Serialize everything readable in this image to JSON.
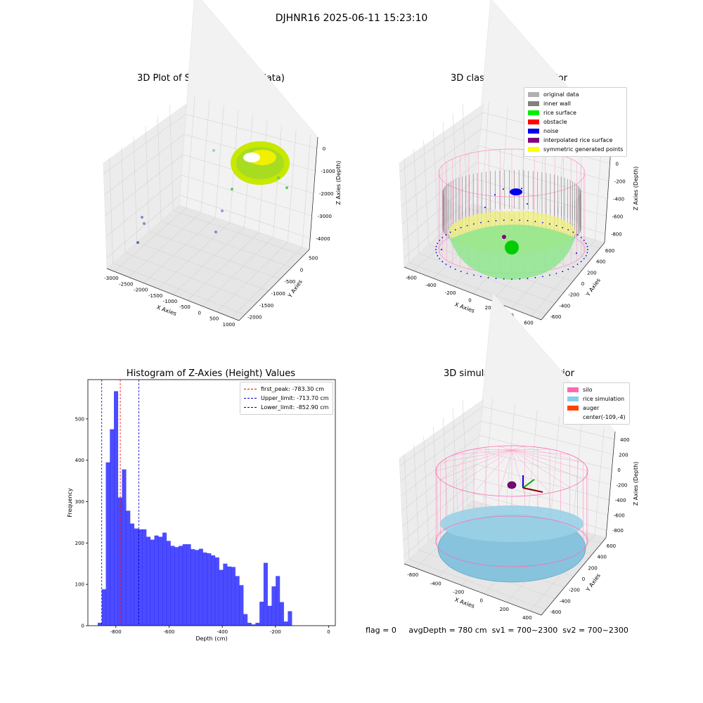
{
  "figure": {
    "suptitle": "DJHNR16 2025-06-11 15:23:10"
  },
  "panels": {
    "raw": {
      "title": "3D Plot of Silo Interior(row data)",
      "xlabel": "X Axies",
      "ylabel": "Y Axies",
      "zlabel": "Z Axies (Depth)",
      "x_ticks": [
        "-3000",
        "-2500",
        "-2000",
        "-1500",
        "-1000",
        "-500",
        "0",
        "500",
        "1000"
      ],
      "y_ticks": [
        "500",
        "0",
        "-500",
        "-1000",
        "-1500",
        "-2000"
      ],
      "z_ticks": [
        "0",
        "-1000",
        "-2000",
        "-3000",
        "-4000"
      ]
    },
    "classify": {
      "title": "3D classify of Silo Interior",
      "xlabel": "X Axies",
      "ylabel": "Y Axies",
      "zlabel": "Z Axies (Depth)",
      "x_ticks": [
        "-600",
        "-400",
        "-200",
        "0",
        "200",
        "400",
        "600"
      ],
      "y_ticks": [
        "600",
        "400",
        "200",
        "0",
        "-200",
        "-400",
        "-600"
      ],
      "z_ticks": [
        "200",
        "0",
        "-200",
        "-400",
        "-600",
        "-800"
      ],
      "legend": [
        {
          "label": "original data",
          "color": "#b0b0b0"
        },
        {
          "label": "inner wall",
          "color": "#808080"
        },
        {
          "label": "rice surface",
          "color": "#00ee00"
        },
        {
          "label": "obstacle",
          "color": "#ff0000"
        },
        {
          "label": "noise",
          "color": "#0000ee"
        },
        {
          "label": "interpolated rice surface",
          "color": "#800080"
        },
        {
          "label": "symmetric generated points",
          "color": "#ffff00"
        }
      ]
    },
    "simulation": {
      "title": "3D simulation of Silo Interior",
      "xlabel": "X Axies",
      "ylabel": "Y Axies",
      "zlabel": "Z Axies (Depth)",
      "x_ticks": [
        "-600",
        "-400",
        "-200",
        "0",
        "200",
        "400"
      ],
      "y_ticks": [
        "600",
        "400",
        "200",
        "0",
        "-200",
        "-400",
        "-600"
      ],
      "z_ticks": [
        "400",
        "200",
        "0",
        "-200",
        "-400",
        "-600",
        "-800"
      ],
      "legend": [
        {
          "label": "silo",
          "color": "#ff69b4"
        },
        {
          "label": "rice simulation",
          "color": "#87ceeb"
        },
        {
          "label": "auger",
          "color": "#ff4500"
        },
        {
          "label": "center(-109,-4)",
          "color": ""
        }
      ]
    }
  },
  "status": {
    "flag": "flag = 0",
    "avg_depth": "avgDepth = 780 cm",
    "sv1": "sv1 = 700~2300",
    "sv2": "sv2 = 700~2300"
  },
  "chart_data": {
    "type": "bar",
    "title": "Histogram of Z-Axies (Height) Values",
    "xlabel": "Depth (cm)",
    "ylabel": "Frequency",
    "xlim": [
      -905,
      25
    ],
    "ylim": [
      0,
      595
    ],
    "x_ticks": [
      -800,
      -600,
      -400,
      -200,
      0
    ],
    "y_ticks": [
      0,
      100,
      200,
      300,
      400,
      500
    ],
    "bin_start": -868,
    "bin_width": 15.2,
    "counts": [
      7,
      88,
      395,
      475,
      567,
      310,
      378,
      278,
      247,
      235,
      233,
      233,
      215,
      208,
      218,
      215,
      225,
      205,
      193,
      190,
      193,
      197,
      197,
      185,
      183,
      186,
      177,
      175,
      170,
      165,
      135,
      150,
      143,
      142,
      120,
      98,
      28,
      7,
      3,
      7,
      58,
      152,
      48,
      95,
      120,
      57,
      10,
      35
    ],
    "bar_color": "#0000ff",
    "vlines": [
      {
        "label": "first_peak: -783.30 cm",
        "x": -783.3,
        "color": "#ff0000"
      },
      {
        "label": "Upper_limit: -713.70 cm",
        "x": -713.7,
        "color": "#0000cc"
      },
      {
        "label": "Lower_limit: -852.90 cm",
        "x": -852.9,
        "color": "#0000cc"
      }
    ],
    "legend_position": "top-right"
  }
}
